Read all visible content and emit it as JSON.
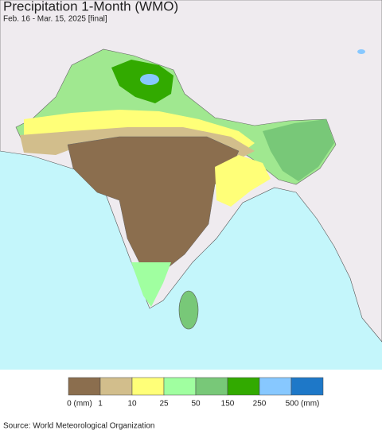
{
  "header": {
    "title": "Precipitation 1-Month (WMO)",
    "subtitle": "Feb. 16 - Mar. 15, 2025 [final]"
  },
  "legend": {
    "colors": [
      "#8b6e4e",
      "#d2be8c",
      "#ffff78",
      "#a0ffa0",
      "#78c878",
      "#32aa00",
      "#87c8ff",
      "#1e78c8"
    ],
    "labels": [
      "0 (mm)",
      "1",
      "10",
      "25",
      "50",
      "150",
      "250",
      "500 (mm)"
    ]
  },
  "source": "Source: World Meteorological Organization"
}
